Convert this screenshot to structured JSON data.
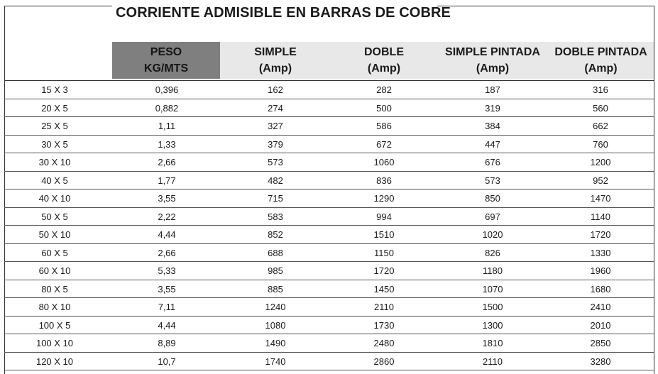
{
  "title": "CORRIENTE ADMISIBLE EN BARRAS DE COBRE",
  "headers": [
    {
      "line1": "PESO",
      "line2": "KG/MTS"
    },
    {
      "line1": "SIMPLE",
      "line2": "(Amp)"
    },
    {
      "line1": "DOBLE",
      "line2": "(Amp)"
    },
    {
      "line1": "SIMPLE PINTADA",
      "line2": "(Amp)"
    },
    {
      "line1": "DOBLE PINTADA",
      "line2": "(Amp)"
    }
  ],
  "rows": [
    [
      "15 X 3",
      "0,396",
      "162",
      "282",
      "187",
      "316"
    ],
    [
      "20 X 5",
      "0,882",
      "274",
      "500",
      "319",
      "560"
    ],
    [
      "25 X 5",
      "1,11",
      "327",
      "586",
      "384",
      "662"
    ],
    [
      "30 X 5",
      "1,33",
      "379",
      "672",
      "447",
      "760"
    ],
    [
      "30 X 10",
      "2,66",
      "573",
      "1060",
      "676",
      "1200"
    ],
    [
      "40 X 5",
      "1,77",
      "482",
      "836",
      "573",
      "952"
    ],
    [
      "40 X 10",
      "3,55",
      "715",
      "1290",
      "850",
      "1470"
    ],
    [
      "50 X 5",
      "2,22",
      "583",
      "994",
      "697",
      "1140"
    ],
    [
      "50 X 10",
      "4,44",
      "852",
      "1510",
      "1020",
      "1720"
    ],
    [
      "60 X 5",
      "2,66",
      "688",
      "1150",
      "826",
      "1330"
    ],
    [
      "60 X 10",
      "5,33",
      "985",
      "1720",
      "1180",
      "1960"
    ],
    [
      "80 X 5",
      "3,55",
      "885",
      "1450",
      "1070",
      "1680"
    ],
    [
      "80 X 10",
      "7,11",
      "1240",
      "2110",
      "1500",
      "2410"
    ],
    [
      "100 X 5",
      "4,44",
      "1080",
      "1730",
      "1300",
      "2010"
    ],
    [
      "100 X 10",
      "8,89",
      "1490",
      "2480",
      "1810",
      "2850"
    ],
    [
      "120 X 10",
      "10,7",
      "1740",
      "2860",
      "2110",
      "3280"
    ]
  ],
  "colors": {
    "peso_header_bg": "#7f7f7f",
    "header_bg": "#e8e8e8",
    "text": "#1a1a1a"
  }
}
